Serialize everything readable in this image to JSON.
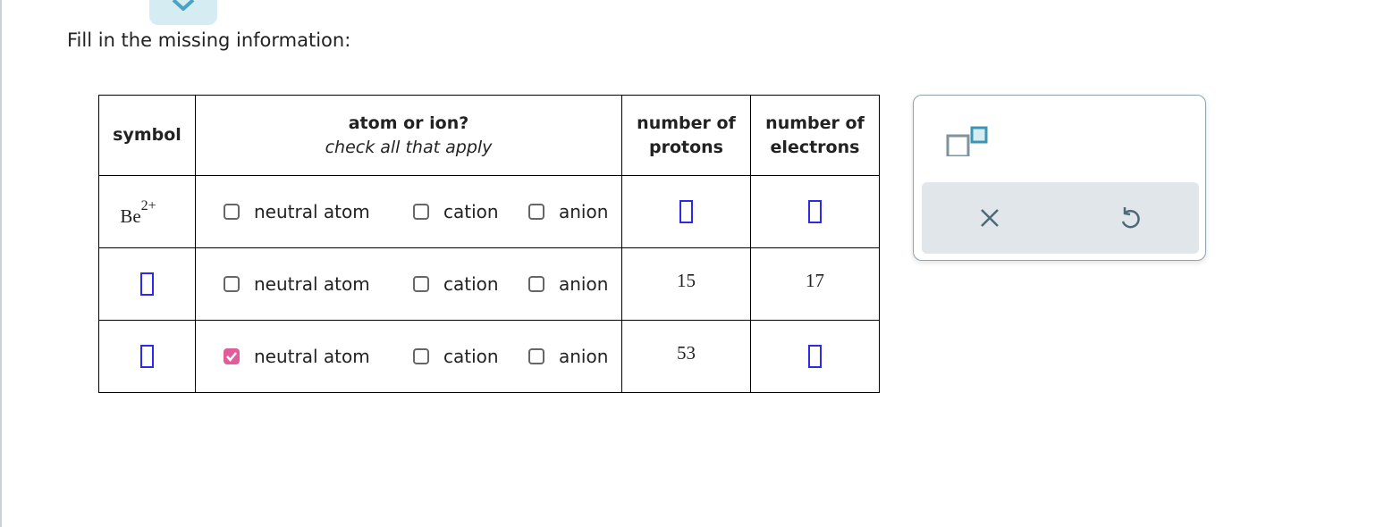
{
  "prompt": "Fill in the missing information:",
  "table": {
    "headers": {
      "symbol": "symbol",
      "atom_or_ion": "atom or ion?",
      "atom_or_ion_hint": "check all that apply",
      "protons": "number of protons",
      "electrons": "number of electrons"
    },
    "options": [
      "neutral atom",
      "cation",
      "anion"
    ],
    "rows": [
      {
        "symbol": "Be",
        "charge": "2+",
        "checked": [
          false,
          false,
          false
        ],
        "protons": "",
        "electrons": ""
      },
      {
        "symbol": "",
        "charge": "",
        "checked": [
          false,
          false,
          false
        ],
        "protons": "15",
        "electrons": "17"
      },
      {
        "symbol": "",
        "charge": "",
        "checked": [
          true,
          false,
          false
        ],
        "protons": "53",
        "electrons": ""
      }
    ]
  },
  "panel": {
    "icons": [
      "superscript-icon",
      "clear-icon",
      "undo-icon"
    ]
  },
  "colors": {
    "blank_border": "#2a2ae8",
    "checked": "#e05c9a",
    "accent": "#3c95b3"
  }
}
